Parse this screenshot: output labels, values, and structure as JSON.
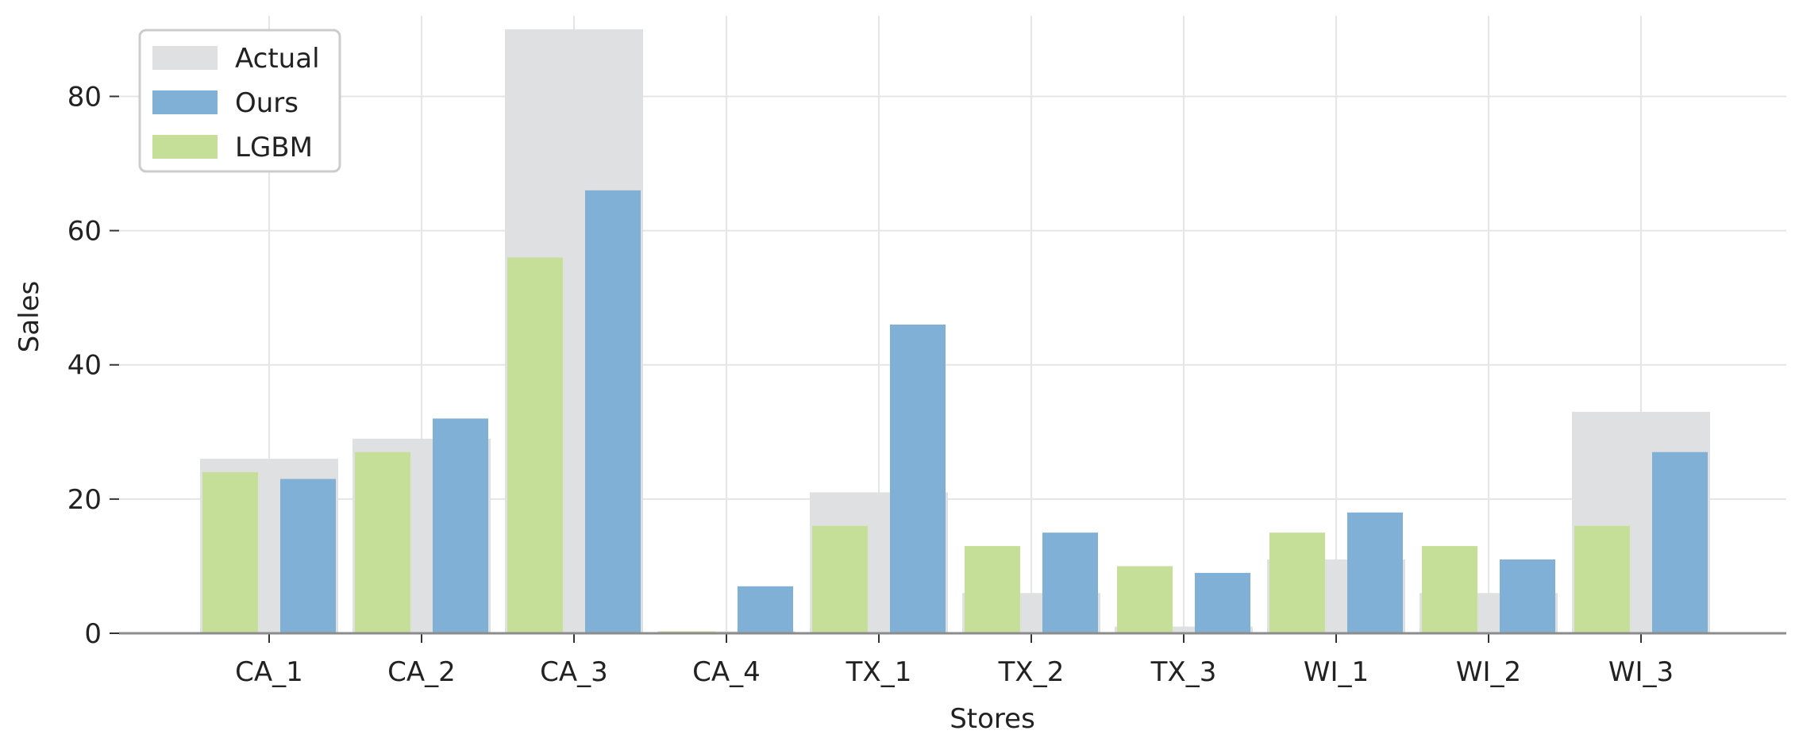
{
  "chart_data": {
    "type": "bar",
    "categories": [
      "CA_1",
      "CA_2",
      "CA_3",
      "CA_4",
      "TX_1",
      "TX_2",
      "TX_3",
      "WI_1",
      "WI_2",
      "WI_3"
    ],
    "series": [
      {
        "name": "Actual",
        "values": [
          26,
          29,
          90,
          0.3,
          21,
          6,
          1,
          11,
          6,
          33
        ]
      },
      {
        "name": "Ours",
        "values": [
          23,
          32,
          66,
          7,
          46,
          15,
          9,
          18,
          11,
          27
        ]
      },
      {
        "name": "LGBM",
        "values": [
          24,
          27,
          56,
          0.3,
          16,
          13,
          10,
          15,
          13,
          16
        ]
      }
    ],
    "xlabel": "Stores",
    "ylabel": "Sales",
    "ylim": [
      0,
      92
    ],
    "yticks": [
      0,
      20,
      40,
      60,
      80
    ],
    "grid": true,
    "legend": "top-left",
    "colors": {
      "Actual": "#dfe0e2",
      "Ours": "#80b0d5",
      "LGBM": "#c6df98"
    }
  }
}
